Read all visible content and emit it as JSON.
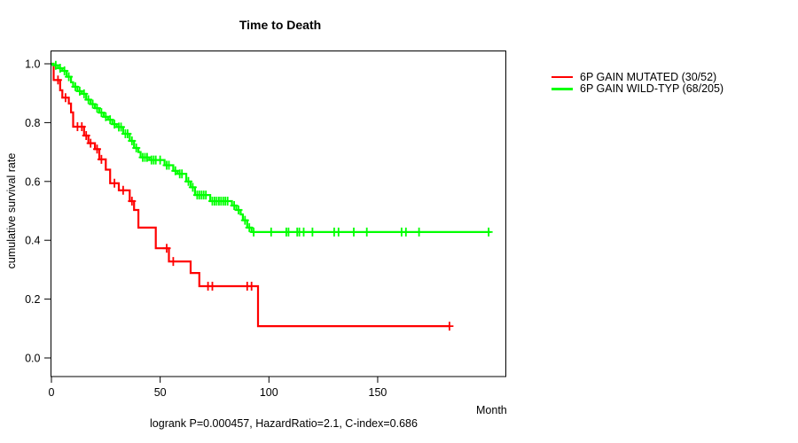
{
  "title": "Time to Death",
  "footer": "logrank P=0.000457, HazardRatio=2.1, C-index=0.686",
  "chart_data": {
    "type": "line",
    "subtype": "kaplan-meier-step-curves",
    "title": "Time to Death",
    "xlabel": "Month",
    "ylabel": "cumulative survival rate",
    "xlim": [
      0,
      209
    ],
    "ylim": [
      0.0,
      1.0
    ],
    "xticks": [
      0,
      50,
      100,
      150
    ],
    "yticks": [
      0.0,
      0.2,
      0.4,
      0.6,
      0.8,
      1.0
    ],
    "yticklabels": [
      "0.0",
      "0.2",
      "0.4",
      "0.6",
      "0.8",
      "1.0"
    ],
    "grid": false,
    "legend_position": "right-outside",
    "annotation": "logrank P=0.000457, HazardRatio=2.1, C-index=0.686",
    "series": [
      {
        "name": "6P GAIN MUTATED (30/52)",
        "color": "#FF0000",
        "events_over_n": "30/52",
        "steps": [
          [
            0,
            1.0
          ],
          [
            1,
            0.945
          ],
          [
            4,
            0.91
          ],
          [
            5,
            0.885
          ],
          [
            8,
            0.865
          ],
          [
            9,
            0.835
          ],
          [
            10,
            0.786
          ],
          [
            15,
            0.756
          ],
          [
            17,
            0.73
          ],
          [
            20,
            0.71
          ],
          [
            22,
            0.675
          ],
          [
            25,
            0.64
          ],
          [
            27,
            0.594
          ],
          [
            31,
            0.57
          ],
          [
            36,
            0.533
          ],
          [
            38,
            0.503
          ],
          [
            40,
            0.443
          ],
          [
            48,
            0.373
          ],
          [
            54,
            0.328
          ],
          [
            64,
            0.289
          ],
          [
            68,
            0.244
          ],
          [
            95,
            0.108
          ],
          [
            183,
            0.108
          ]
        ],
        "censor_months": [
          3,
          6.5,
          12,
          14,
          16,
          18,
          21,
          23,
          29,
          33,
          37,
          53,
          56,
          72,
          74,
          90,
          92,
          183
        ]
      },
      {
        "name": "6P GAIN WILD-TYP (68/205)",
        "color": "#00FF00",
        "events_over_n": "68/205",
        "steps": [
          [
            0,
            1.0
          ],
          [
            1,
            0.995
          ],
          [
            3,
            0.985
          ],
          [
            5,
            0.976
          ],
          [
            7,
            0.956
          ],
          [
            9,
            0.937
          ],
          [
            10,
            0.922
          ],
          [
            12,
            0.907
          ],
          [
            14,
            0.898
          ],
          [
            16,
            0.878
          ],
          [
            18,
            0.863
          ],
          [
            20,
            0.849
          ],
          [
            22,
            0.834
          ],
          [
            24,
            0.82
          ],
          [
            26,
            0.81
          ],
          [
            28,
            0.795
          ],
          [
            30,
            0.785
          ],
          [
            33,
            0.762
          ],
          [
            36,
            0.738
          ],
          [
            38,
            0.714
          ],
          [
            40,
            0.7
          ],
          [
            41,
            0.682
          ],
          [
            45,
            0.673
          ],
          [
            52,
            0.655
          ],
          [
            56,
            0.636
          ],
          [
            58,
            0.626
          ],
          [
            62,
            0.6
          ],
          [
            64,
            0.58
          ],
          [
            66,
            0.554
          ],
          [
            73,
            0.533
          ],
          [
            83,
            0.518
          ],
          [
            85,
            0.503
          ],
          [
            87,
            0.488
          ],
          [
            88,
            0.468
          ],
          [
            90,
            0.443
          ],
          [
            92,
            0.428
          ],
          [
            202,
            0.428
          ]
        ],
        "censor_months": [
          2,
          4,
          6,
          8,
          11,
          13,
          15,
          17,
          19,
          21,
          23,
          25,
          27,
          29,
          31,
          32,
          34,
          35,
          37,
          39,
          42,
          43,
          44,
          46,
          47,
          48,
          50,
          53,
          54,
          57,
          59,
          60,
          63,
          65,
          67,
          68,
          69,
          70,
          71,
          74,
          75,
          76,
          77,
          78,
          79,
          80,
          81,
          84,
          86,
          89,
          91,
          93,
          101,
          108,
          109,
          113,
          114,
          116,
          120,
          130,
          132,
          139,
          145,
          161,
          163,
          169,
          201
        ]
      }
    ]
  }
}
